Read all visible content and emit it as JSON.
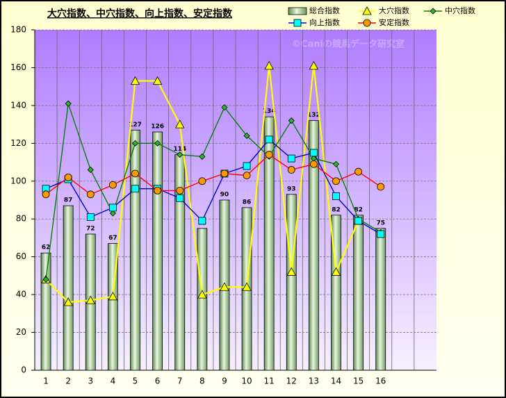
{
  "chart_data": {
    "type": "bar",
    "title": "大穴指数、中穴指数、向上指数、安定指数",
    "watermark": "©Caniの競馬データ研究室",
    "categories": [
      "1",
      "2",
      "3",
      "4",
      "5",
      "6",
      "7",
      "8",
      "9",
      "10",
      "11",
      "12",
      "13",
      "14",
      "15",
      "16",
      null,
      null
    ],
    "ylim": [
      0,
      180
    ],
    "yticks": [
      0,
      20,
      40,
      60,
      80,
      100,
      120,
      140,
      160,
      180
    ],
    "grid": true,
    "series": [
      {
        "name": "総合指数",
        "marker": "bar",
        "color": "#9fc08c",
        "values": [
          62,
          87,
          72,
          67,
          127,
          126,
          114,
          75,
          90,
          86,
          134,
          93,
          132,
          82,
          82,
          75,
          null,
          null
        ]
      },
      {
        "name": "大穴指数",
        "marker": "triangle",
        "color": "#ffff00",
        "values": [
          48,
          36,
          37,
          39,
          153,
          153,
          130,
          40,
          44,
          44,
          161,
          52,
          161,
          52,
          79,
          null,
          null,
          null
        ]
      },
      {
        "name": "中穴指数",
        "marker": "diamond",
        "color": "#008000",
        "values": [
          48,
          141,
          106,
          83,
          120,
          120,
          114,
          113,
          139,
          124,
          113,
          132,
          112,
          109,
          80,
          73,
          null,
          null
        ]
      },
      {
        "name": "向上指数",
        "marker": "square",
        "color": "#0000cc",
        "values": [
          96,
          101,
          81,
          86,
          96,
          96,
          91,
          79,
          104,
          108,
          122,
          112,
          115,
          92,
          79,
          72,
          null,
          null
        ]
      },
      {
        "name": "安定指数",
        "marker": "circle",
        "color": "#ff0000",
        "values": [
          93,
          102,
          93,
          98,
          104,
          95,
          95,
          100,
          104,
          103,
          114,
          106,
          109,
          100,
          105,
          97,
          null,
          null
        ]
      }
    ]
  }
}
